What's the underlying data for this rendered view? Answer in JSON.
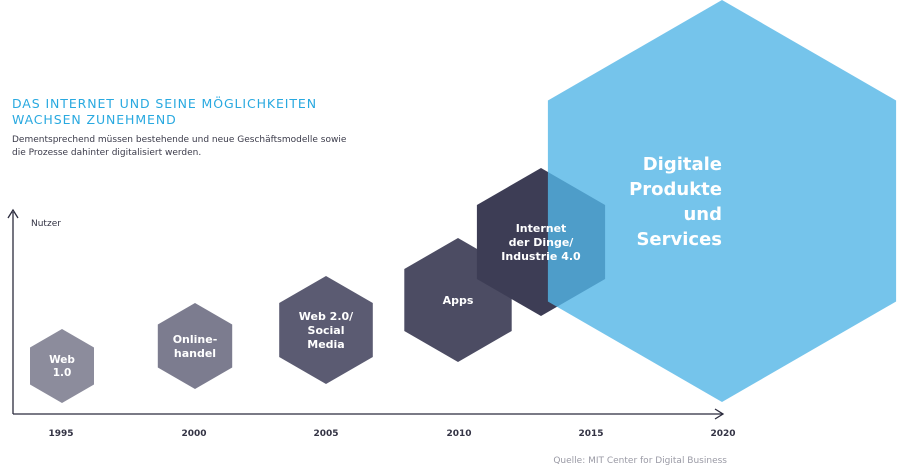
{
  "header": {
    "title": "DAS INTERNET UND SEINE MÖGLICHKEITEN WACHSEN ZUNEHMEND",
    "subtitle": "Dementsprechend müssen bestehende und neue Geschäftsmodelle sowie die Prozesse dahinter digitalisiert werden."
  },
  "axis": {
    "y_label": "Nutzer",
    "x_ticks": [
      "1995",
      "2000",
      "2005",
      "2010",
      "2015",
      "2020"
    ]
  },
  "stages": [
    {
      "label_lines": [
        "Web",
        "1.0"
      ],
      "color": "#8c8c9c"
    },
    {
      "label_lines": [
        "Online-",
        "handel"
      ],
      "color": "#7c7c8f"
    },
    {
      "label_lines": [
        "Web 2.0/",
        "Social",
        "Media"
      ],
      "color": "#5b5b72"
    },
    {
      "label_lines": [
        "Apps"
      ],
      "color": "#4c4c63"
    },
    {
      "label_lines": [
        "Internet",
        "der Dinge/",
        "Industrie 4.0"
      ],
      "color": "#3d3d55"
    },
    {
      "label_lines": [
        "Digitale",
        "Produkte",
        "und",
        "Services"
      ],
      "color": "#52b5e6"
    }
  ],
  "source": "Quelle: MIT Center for Digital Business"
}
